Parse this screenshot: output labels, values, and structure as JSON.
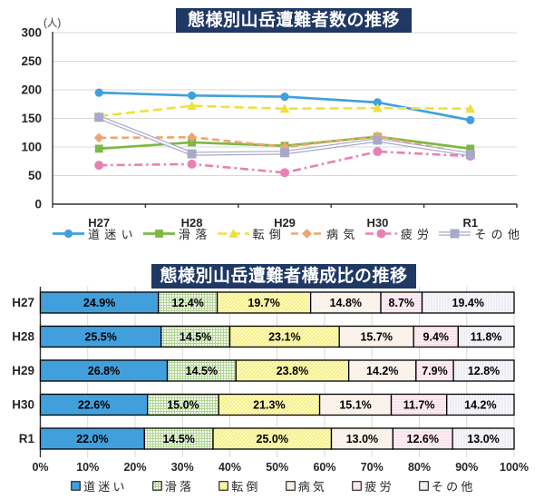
{
  "page": {
    "background": "#FFFFFF",
    "title_box_color": "#1F3864",
    "title_text_color": "#FFFFFF",
    "grid_color": "#D9D9D9",
    "axis_color": "#333333",
    "axis_label_color": "#262626"
  },
  "chart_data": [
    {
      "type": "line",
      "title": "態様別山岳遭難者数の推移",
      "unit_label": "(人)",
      "categories": [
        "H27",
        "H28",
        "H29",
        "H30",
        "R1"
      ],
      "ylim": [
        0,
        300
      ],
      "yticks": [
        0,
        50,
        100,
        150,
        200,
        250,
        300
      ],
      "grid": true,
      "legend_position": "bottom",
      "series": [
        {
          "name": "道迷い",
          "values": [
            195,
            190,
            188,
            178,
            147
          ],
          "color": "#41A0DC",
          "marker": "circle",
          "line": "solid"
        },
        {
          "name": "滑落",
          "values": [
            97,
            108,
            102,
            118,
            97
          ],
          "color": "#7CB842",
          "marker": "square",
          "line": "solid"
        },
        {
          "name": "転倒",
          "values": [
            154,
            172,
            167,
            168,
            167
          ],
          "color": "#EEE13D",
          "marker": "triangle",
          "line": "dashed"
        },
        {
          "name": "病気",
          "values": [
            116,
            117,
            100,
            119,
            87
          ],
          "color": "#EDA66F",
          "marker": "diamond",
          "line": "dashed2"
        },
        {
          "name": "疲労",
          "values": [
            68,
            70,
            55,
            92,
            84
          ],
          "color": "#E880B2",
          "marker": "circle",
          "line": "dashdot"
        },
        {
          "name": "その他",
          "values": [
            152,
            88,
            90,
            112,
            87
          ],
          "color": "#A8A8C8",
          "marker": "square",
          "line": "double"
        }
      ]
    },
    {
      "type": "bar",
      "orientation": "horizontal-stacked",
      "title": "態様別山岳遭難者構成比の推移",
      "categories": [
        "H27",
        "H28",
        "H29",
        "H30",
        "R1"
      ],
      "xticks": [
        "0%",
        "10%",
        "20%",
        "30%",
        "40%",
        "50%",
        "60%",
        "70%",
        "80%",
        "90%",
        "100%"
      ],
      "value_suffix": "%",
      "grid": true,
      "legend_position": "bottom",
      "series": [
        {
          "name": "道迷い",
          "values": [
            24.9,
            25.5,
            26.8,
            22.6,
            22.0
          ],
          "fill": "solid",
          "color": "#41A0DC",
          "pattern_color": "#41A0DC"
        },
        {
          "name": "滑落",
          "values": [
            12.4,
            14.5,
            14.5,
            15.0,
            14.5
          ],
          "fill": "grid",
          "color": "#FDFEF9",
          "pattern_color": "#AFD58F"
        },
        {
          "name": "転倒",
          "values": [
            19.7,
            23.1,
            23.8,
            21.3,
            25.0
          ],
          "fill": "diagonal",
          "color": "#F6F07A",
          "pattern_color": "#FEFDE9"
        },
        {
          "name": "病気",
          "values": [
            14.8,
            15.7,
            14.2,
            15.1,
            13.0
          ],
          "fill": "crosshatch",
          "color": "#F6E3D1",
          "pattern_color": "#FFFFFF"
        },
        {
          "name": "疲労",
          "values": [
            8.7,
            9.4,
            7.9,
            11.7,
            12.6
          ],
          "fill": "hlines",
          "color": "#F9CFDF",
          "pattern_color": "#FFFFFF"
        },
        {
          "name": "その他",
          "values": [
            19.4,
            11.8,
            12.8,
            14.2,
            13.0
          ],
          "fill": "vlines",
          "color": "#E2E1EF",
          "pattern_color": "#FFFFFF"
        }
      ]
    }
  ]
}
